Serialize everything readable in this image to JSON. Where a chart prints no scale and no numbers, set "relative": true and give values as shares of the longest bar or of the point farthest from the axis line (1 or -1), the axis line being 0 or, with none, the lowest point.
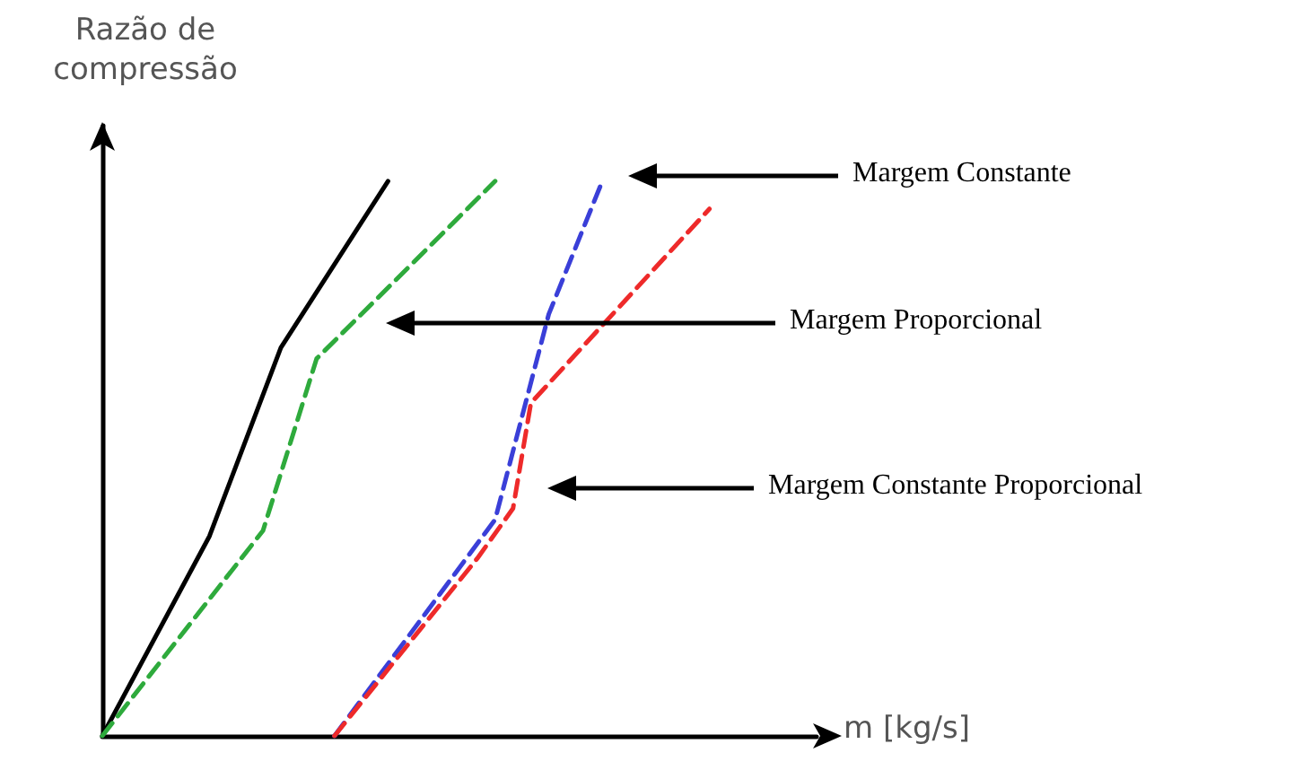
{
  "chart_data": {
    "type": "line",
    "relative": true,
    "ylabel": "Razão de compressão",
    "xlabel": "m [kg/s]",
    "grid": false,
    "marker": "none",
    "categories": [
      null,
      null,
      null,
      null,
      null,
      null,
      null,
      null,
      null,
      null,
      null,
      null,
      null,
      null,
      null,
      null,
      null,
      null,
      null,
      null,
      null,
      null,
      null,
      null,
      null,
      null,
      null,
      null,
      null,
      null,
      null,
      null,
      null,
      null,
      null,
      null,
      null,
      null,
      null,
      null,
      null
    ],
    "series": [
      {
        "color": "#000000",
        "line_style": "solid",
        "values": [
          0,
          null,
          null,
          null,
          null,
          null,
          0.36,
          null,
          null,
          null,
          0.7,
          null,
          null,
          null,
          null,
          null,
          1,
          null,
          null,
          null,
          null,
          null,
          null,
          null,
          null,
          null,
          null,
          null,
          null,
          null,
          null,
          null,
          null,
          null,
          null,
          null,
          null,
          null,
          null,
          null,
          null
        ]
      },
      {
        "color": "#2eaa3c",
        "line_style": "dashed",
        "values": [
          0,
          null,
          null,
          null,
          null,
          null,
          null,
          null,
          null,
          0.37,
          null,
          null,
          0.68,
          null,
          null,
          null,
          null,
          null,
          null,
          null,
          null,
          null,
          1,
          null,
          null,
          null,
          null,
          null,
          null,
          null,
          null,
          null,
          null,
          null,
          null,
          null,
          null,
          null,
          null,
          null,
          null
        ]
      },
      {
        "color": "#3a3fd8",
        "line_style": "dashed",
        "values": [
          null,
          null,
          null,
          null,
          null,
          null,
          null,
          null,
          null,
          null,
          null,
          null,
          null,
          0,
          null,
          null,
          null,
          null,
          null,
          null,
          null,
          null,
          0.39,
          null,
          null,
          0.76,
          null,
          null,
          1,
          null,
          null,
          null,
          null,
          null,
          null,
          null,
          null,
          null,
          null,
          null,
          null
        ]
      },
      {
        "color": "#ee2a2a",
        "line_style": "dashed",
        "values": [
          null,
          null,
          null,
          null,
          null,
          null,
          null,
          null,
          null,
          null,
          null,
          null,
          null,
          0,
          null,
          null,
          null,
          null,
          null,
          null,
          null,
          0.32,
          null,
          0.41,
          0.6,
          null,
          null,
          null,
          null,
          null,
          null,
          null,
          null,
          null,
          0.95,
          null,
          null,
          null,
          null,
          null,
          null
        ]
      }
    ],
    "annotations": [
      "Margem Constante",
      "Margem Proporcional",
      "Margem Constante Proporcional"
    ]
  }
}
